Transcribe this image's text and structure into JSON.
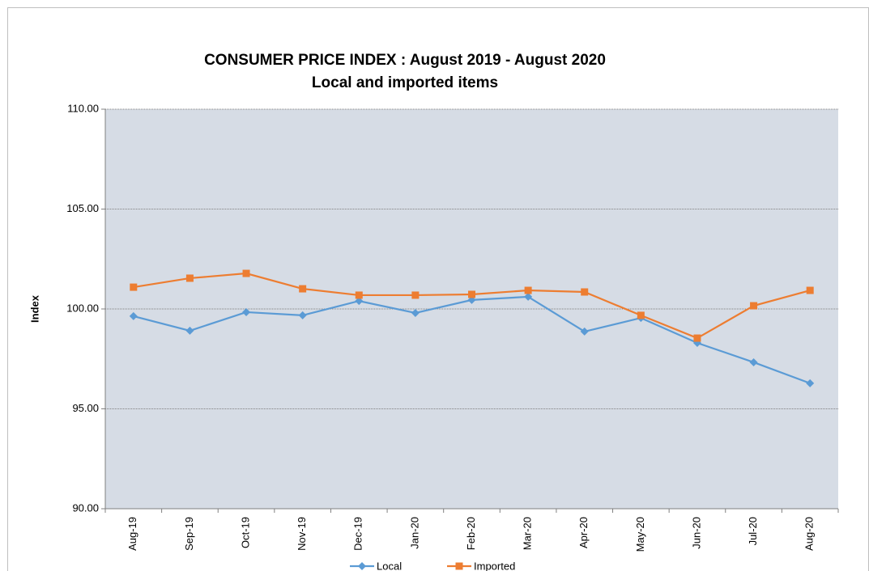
{
  "chart_data": {
    "type": "line",
    "title": "CONSUMER PRICE INDEX : August 2019 - August 2020",
    "subtitle": "Local and imported items",
    "y_label": "Index",
    "categories": [
      "Aug-19",
      "Sep-19",
      "Oct-19",
      "Nov-19",
      "Dec-19",
      "Jan-20",
      "Feb-20",
      "Mar-20",
      "Apr-20",
      "May-20",
      "Jun-20",
      "Jul-20",
      "Aug-20"
    ],
    "series": [
      {
        "name": "Local",
        "color": "#5b9bd5",
        "marker": "diamond",
        "values": [
          99.64,
          98.91,
          99.84,
          99.68,
          100.4,
          99.8,
          100.45,
          100.61,
          98.87,
          99.55,
          98.3,
          97.33,
          96.28
        ]
      },
      {
        "name": "Imported",
        "color": "#ed7d31",
        "marker": "square",
        "values": [
          101.09,
          101.54,
          101.78,
          101.01,
          100.69,
          100.69,
          100.73,
          100.93,
          100.85,
          99.68,
          98.54,
          100.16,
          100.93
        ]
      }
    ],
    "ylim": [
      90,
      110
    ],
    "yticks": [
      {
        "value": 90,
        "label": "90.00"
      },
      {
        "value": 95,
        "label": "95.00"
      },
      {
        "value": 100,
        "label": "100.00"
      },
      {
        "value": 105,
        "label": "105.00"
      },
      {
        "value": 110,
        "label": "110.00"
      }
    ],
    "grid": true,
    "legend": "bottom"
  }
}
